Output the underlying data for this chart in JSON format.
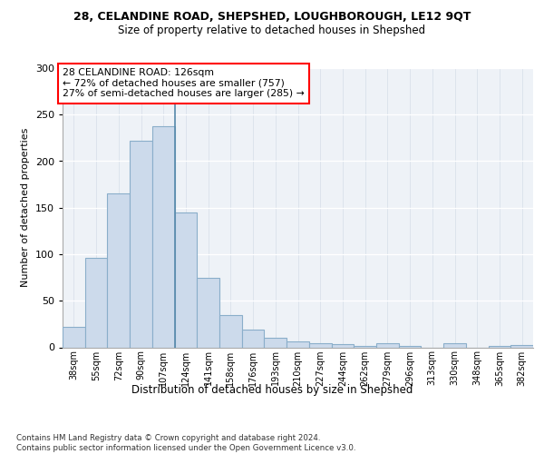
{
  "title_line1": "28, CELANDINE ROAD, SHEPSHED, LOUGHBOROUGH, LE12 9QT",
  "title_line2": "Size of property relative to detached houses in Shepshed",
  "xlabel": "Distribution of detached houses by size in Shepshed",
  "ylabel": "Number of detached properties",
  "categories": [
    "38sqm",
    "55sqm",
    "72sqm",
    "90sqm",
    "107sqm",
    "124sqm",
    "141sqm",
    "158sqm",
    "176sqm",
    "193sqm",
    "210sqm",
    "227sqm",
    "244sqm",
    "262sqm",
    "279sqm",
    "296sqm",
    "313sqm",
    "330sqm",
    "348sqm",
    "365sqm",
    "382sqm"
  ],
  "bar_values": [
    22,
    96,
    165,
    222,
    238,
    145,
    75,
    35,
    19,
    10,
    6,
    4,
    3,
    1,
    4,
    1,
    0,
    4,
    0,
    1,
    2
  ],
  "bar_color": "#ccdaeb",
  "bar_edge_color": "#8aaeca",
  "annotation_text": "28 CELANDINE ROAD: 126sqm\n← 72% of detached houses are smaller (757)\n27% of semi-detached houses are larger (285) →",
  "property_bin_index": 4,
  "vline_x": 4.5,
  "ylim": [
    0,
    300
  ],
  "yticks": [
    0,
    50,
    100,
    150,
    200,
    250,
    300
  ],
  "footer": "Contains HM Land Registry data © Crown copyright and database right 2024.\nContains public sector information licensed under the Open Government Licence v3.0.",
  "bg_color": "#eef2f7"
}
